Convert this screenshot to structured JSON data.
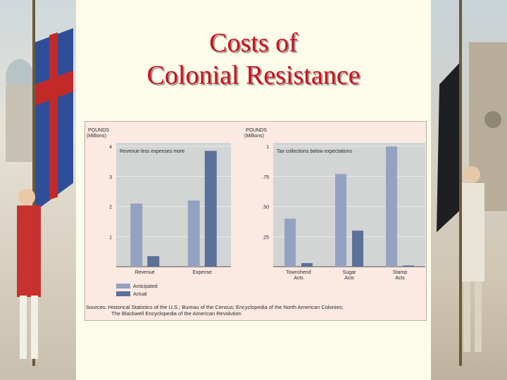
{
  "slide": {
    "title_line1": "Costs of",
    "title_line2": "Colonial Resistance"
  },
  "chart_data": [
    {
      "type": "bar",
      "ylabel": "POUNDS (Millions)",
      "annotation": "Revenue less expenses more",
      "categories": [
        "Revenue",
        "Expense"
      ],
      "y_ticks": [
        "4",
        "3",
        "2",
        "1"
      ],
      "ylim": [
        0,
        4
      ],
      "series": [
        {
          "name": "Anticipated",
          "values": [
            2.1,
            2.2
          ]
        },
        {
          "name": "Actual",
          "values": [
            0.35,
            3.85
          ]
        }
      ]
    },
    {
      "type": "bar",
      "ylabel": "POUNDS (Millions)",
      "annotation": "Tax collections below expectations",
      "categories": [
        "Townshend Acts",
        "Sugar Acts",
        "Stamp Acts"
      ],
      "y_ticks": [
        "1",
        ".75",
        ".50",
        ".25"
      ],
      "ylim": [
        0,
        1
      ],
      "series": [
        {
          "name": "Anticipated",
          "values": [
            0.4,
            0.77,
            1.0
          ]
        },
        {
          "name": "Actual",
          "values": [
            0.03,
            0.3,
            0.01
          ]
        }
      ]
    }
  ],
  "legend": {
    "anticipated": "Anticipated",
    "actual": "Actual"
  },
  "colors": {
    "anticipated": "#94a2c2",
    "actual": "#5b7199",
    "plot_bg": "#d3d4d4",
    "title": "#c8141e"
  },
  "sources": {
    "line1": "Sources: Historical Statistics of the U.S.; Bureau of the Census; Encyclopedia of the North American Colonies;",
    "line2": "The Blackwell Encyclopedia of the American Revolution"
  }
}
